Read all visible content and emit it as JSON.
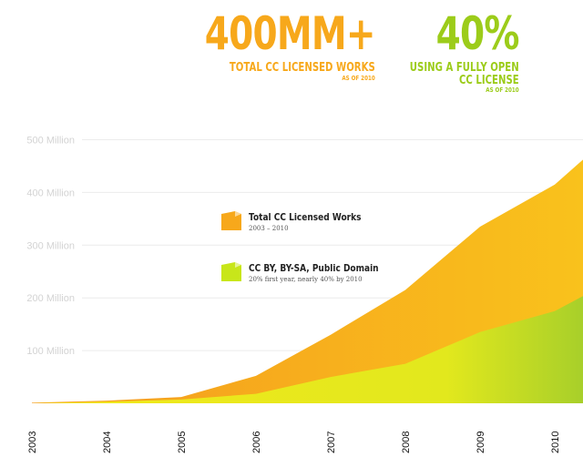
{
  "stats": [
    {
      "big": "400MM+",
      "sub": "TOTAL CC LICENSED WORKS",
      "tiny": "AS OF 2010",
      "color": "#f7a81b"
    },
    {
      "big": "40%",
      "sub1": "USING A FULLY OPEN",
      "sub2": "CC LICENSE",
      "tiny": "AS OF 2010",
      "color": "#9ccc1a"
    }
  ],
  "chart_data": {
    "type": "area",
    "x": [
      2003,
      2004,
      2005,
      2006,
      2007,
      2008,
      2009,
      2010,
      2010.4
    ],
    "xticks": [
      "2003",
      "2004",
      "2005",
      "2006",
      "2007",
      "2008",
      "2009",
      "2010"
    ],
    "yticks": [
      "100 Million",
      "200 Million",
      "300 Million",
      "400 Million",
      "500 Million"
    ],
    "ylim": [
      0,
      500
    ],
    "grid": true,
    "series": [
      {
        "name": "Total CC Licensed Works",
        "note": "2003 – 2010",
        "values": [
          1,
          5,
          12,
          52,
          130,
          215,
          335,
          415,
          465
        ],
        "color": "#f7a81b"
      },
      {
        "name": "CC BY, BY-SA, Public Domain",
        "note": "20% first year, nearly 40% by 2010",
        "values": [
          0,
          3,
          7,
          18,
          50,
          75,
          135,
          175,
          205
        ],
        "color": "#c8e61a"
      }
    ],
    "legend_placement": "center-left"
  }
}
